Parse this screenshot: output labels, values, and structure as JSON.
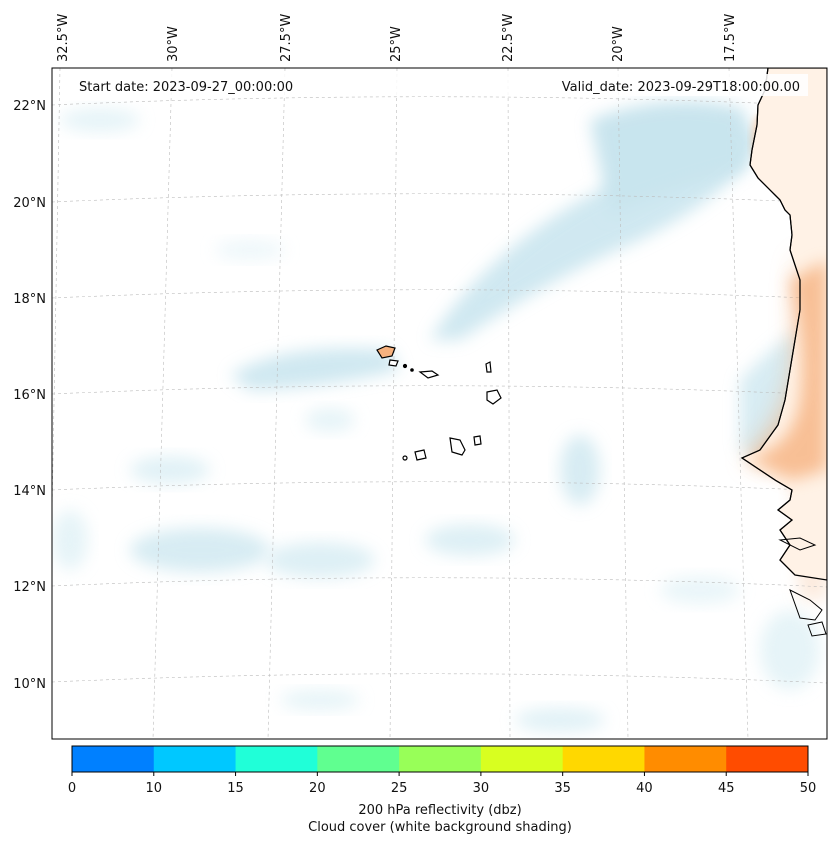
{
  "header": {
    "start_date_text": "Start date: 2023-09-27_00:00:00",
    "valid_date_text": "Valid_date: 2023-09-29T18:00:00.00"
  },
  "map": {
    "lon_labels": [
      "32.5°W",
      "30°W",
      "27.5°W",
      "25°W",
      "22.5°W",
      "20°W",
      "17.5°W"
    ],
    "lat_labels": [
      "22°N",
      "20°N",
      "18°N",
      "16°N",
      "14°N",
      "12°N",
      "10°N"
    ],
    "gridlines": true,
    "ocean_color": "#ffffff",
    "cloud_color": "#a9d6e5",
    "land_reflectivity_color": "#f4a46a"
  },
  "colorbar": {
    "ticks": [
      "0",
      "10",
      "15",
      "20",
      "25",
      "30",
      "35",
      "40",
      "45",
      "50"
    ],
    "colors": [
      "#0080ff",
      "#00c8ff",
      "#20ffd8",
      "#60ff90",
      "#98ff58",
      "#d8ff20",
      "#ffd800",
      "#ff8c00",
      "#ff4c00"
    ],
    "label_line1": "200 hPa reflectivity (dbz)",
    "label_line2": "Cloud cover (white background shading)"
  }
}
